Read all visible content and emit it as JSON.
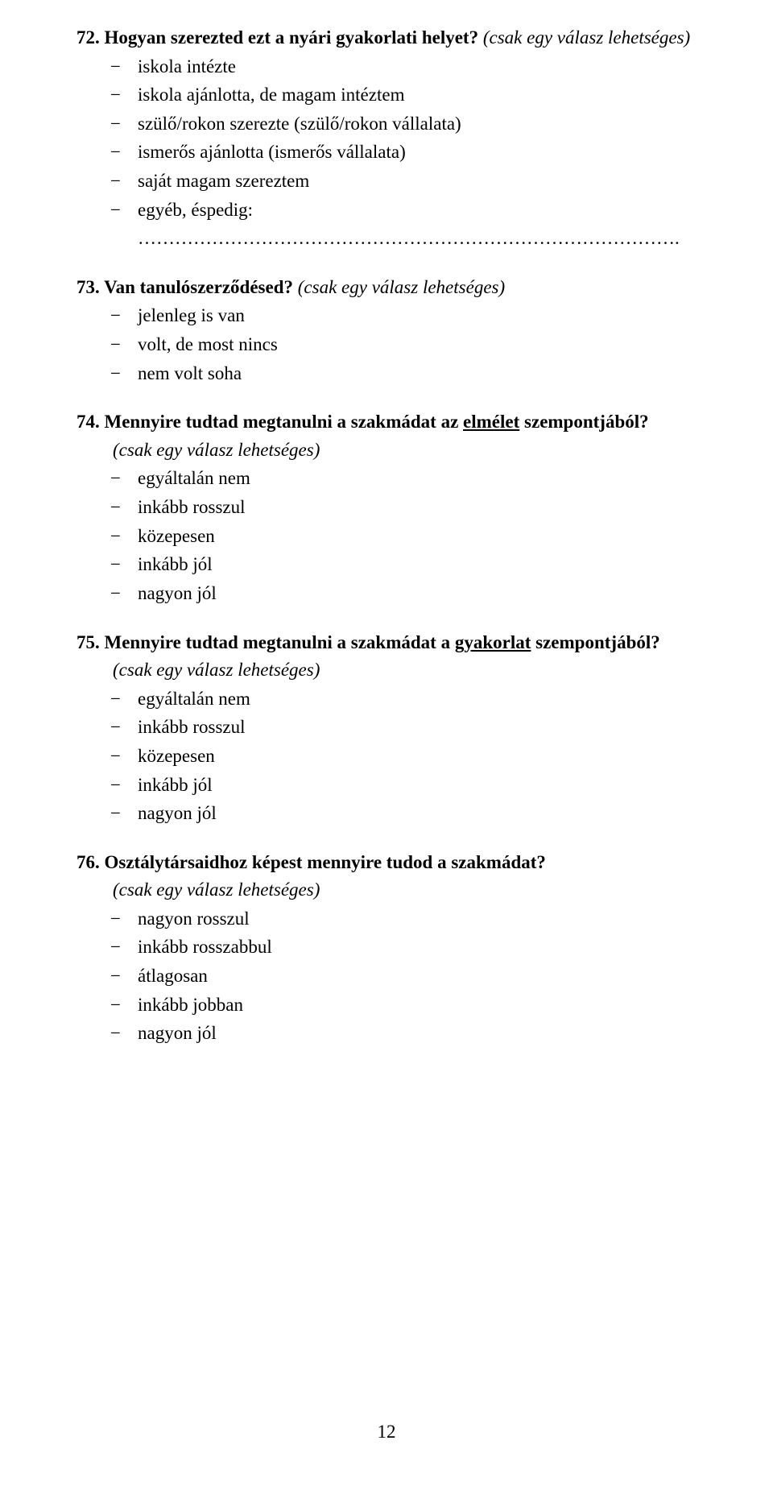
{
  "questions": {
    "q72": {
      "number": "72. ",
      "title": "Hogyan szerezted ezt a nyári gyakorlati helyet? ",
      "subtitle": "(csak egy válasz lehetséges)",
      "options": [
        "iskola intézte",
        "iskola ajánlotta, de magam intéztem",
        "szülő/rokon szerezte (szülő/rokon vállalata)",
        "ismerős ajánlotta (ismerős vállalata)",
        "saját magam szereztem",
        "egyéb, éspedig: ……………………………………………………………………………."
      ]
    },
    "q73": {
      "number": "73. ",
      "title": "Van tanulószerződésed? ",
      "subtitle": "(csak egy válasz lehetséges)",
      "options": [
        "jelenleg is van",
        "volt, de most nincs",
        "nem volt soha"
      ]
    },
    "q74": {
      "number": "74. ",
      "title_before": "Mennyire tudtad megtanulni a szakmádat az ",
      "title_underlined": "elmélet",
      "title_after": " szempontjából?",
      "subtitle": "(csak egy válasz lehetséges)",
      "options": [
        "egyáltalán nem",
        "inkább rosszul",
        "közepesen",
        "inkább jól",
        "nagyon jól"
      ]
    },
    "q75": {
      "number": "75. ",
      "title_before": "Mennyire tudtad megtanulni a szakmádat a ",
      "title_underlined": "gyakorlat",
      "title_after": " szempontjából?",
      "subtitle": "(csak egy válasz lehetséges)",
      "options": [
        "egyáltalán nem",
        "inkább rosszul",
        "közepesen",
        "inkább jól",
        "nagyon jól"
      ]
    },
    "q76": {
      "number": "76. ",
      "title": "Osztálytársaidhoz képest mennyire tudod a szakmádat?",
      "subtitle": "(csak egy válasz lehetséges)",
      "options": [
        "nagyon rosszul",
        "inkább rosszabbul",
        "átlagosan",
        "inkább jobban",
        "nagyon jól"
      ]
    }
  },
  "page_number": "12"
}
